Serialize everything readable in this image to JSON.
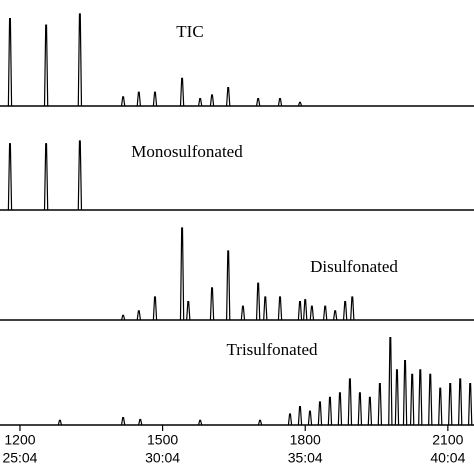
{
  "chart_data": [
    {
      "type": "spectrum",
      "title": "TIC",
      "color": "#000000",
      "xlim": [
        1158,
        2155
      ],
      "ylim": [
        0,
        100
      ],
      "x": [
        1179,
        1255,
        1326,
        1417,
        1450,
        1484,
        1541,
        1579,
        1604,
        1638,
        1701,
        1747,
        1789
      ],
      "values": [
        95,
        88,
        100,
        10,
        15,
        15,
        30,
        8,
        12,
        20,
        8,
        8,
        4
      ]
    },
    {
      "type": "spectrum",
      "title": "Monosulfonated",
      "color": "#000000",
      "xlim": [
        1158,
        2155
      ],
      "ylim": [
        0,
        100
      ],
      "x": [
        1179,
        1255,
        1326
      ],
      "values": [
        72,
        72,
        75
      ]
    },
    {
      "type": "spectrum",
      "title": "Disulfonated",
      "color": "#000000",
      "xlim": [
        1158,
        2155
      ],
      "ylim": [
        0,
        100
      ],
      "x": [
        1417,
        1450,
        1484,
        1541,
        1554,
        1604,
        1638,
        1669,
        1701,
        1716,
        1747,
        1789,
        1800,
        1814,
        1842,
        1863,
        1884,
        1899
      ],
      "values": [
        5,
        10,
        25,
        100,
        20,
        35,
        75,
        15,
        40,
        25,
        25,
        20,
        22,
        15,
        15,
        10,
        20,
        25
      ]
    },
    {
      "type": "spectrum",
      "title": "Trisulfonated",
      "color": "#000000",
      "xlim": [
        1158,
        2155
      ],
      "ylim": [
        0,
        100
      ],
      "x": [
        1284,
        1417,
        1453,
        1579,
        1705,
        1768,
        1789,
        1810,
        1831,
        1852,
        1873,
        1894,
        1915,
        1936,
        1957,
        1979,
        1993,
        2010,
        2025,
        2042,
        2063,
        2084,
        2105,
        2126,
        2147
      ],
      "values": [
        5,
        8,
        6,
        5,
        5,
        12,
        20,
        15,
        25,
        30,
        35,
        50,
        35,
        30,
        45,
        95,
        60,
        70,
        55,
        60,
        55,
        40,
        45,
        50,
        45
      ],
      "xticks": [
        1200,
        1500,
        1800,
        2100
      ],
      "xtick_times": [
        "25:04",
        "30:04",
        "35:04",
        "40:04"
      ]
    }
  ]
}
